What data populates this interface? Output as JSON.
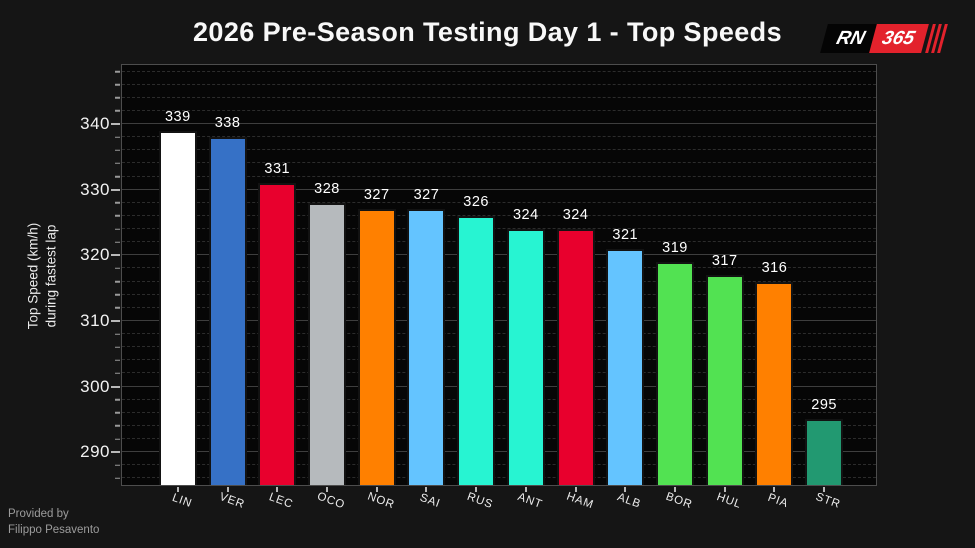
{
  "header": {
    "logo": {
      "text_black": "RN",
      "text_red": "365",
      "red": "#E3222C",
      "black": "#040404",
      "stripe_count": 3
    }
  },
  "footer": {
    "line1": "Provided by",
    "line2": "Filippo Pesavento"
  },
  "chart_data": {
    "type": "bar",
    "title": "2026 Pre-Season Testing Day 1 - Top Speeds",
    "ylabel_line1": "Top Speed (km/h)",
    "ylabel_line2": "during fastest lap",
    "xlabel": "",
    "categories": [
      "LIN",
      "VER",
      "LEC",
      "OCO",
      "NOR",
      "SAI",
      "RUS",
      "ANT",
      "HAM",
      "ALB",
      "BOR",
      "HUL",
      "PIA",
      "STR"
    ],
    "values": [
      339,
      338,
      331,
      328,
      327,
      327,
      326,
      324,
      324,
      321,
      319,
      317,
      316,
      295
    ],
    "bar_colors": [
      "#FFFFFF",
      "#3671C6",
      "#E8002D",
      "#B6BABD",
      "#FF8000",
      "#64C4FF",
      "#27F4D2",
      "#27F4D2",
      "#E8002D",
      "#64C4FF",
      "#52E252",
      "#52E252",
      "#FF8000",
      "#229971"
    ],
    "value_labels_shown": true,
    "ylim": [
      285,
      349
    ],
    "yticks": [
      290,
      300,
      310,
      320,
      330,
      340
    ],
    "minor_tick_step": 2,
    "grid": "horizontal: solid major lines, dashed minor lines",
    "legend": "none",
    "x_tick_rotation_deg": 20
  }
}
